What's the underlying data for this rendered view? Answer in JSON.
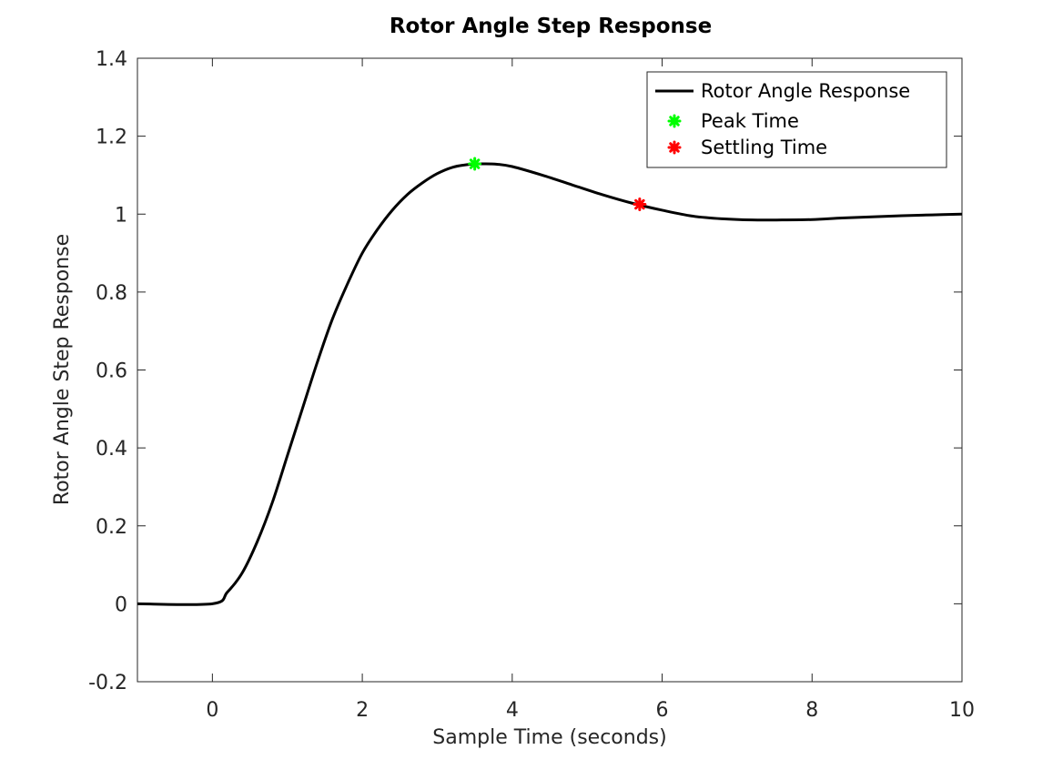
{
  "chart_data": {
    "type": "line",
    "title": "Rotor Angle Step Response",
    "xlabel": "Sample Time (seconds)",
    "ylabel": "Rotor Angle Step Response",
    "xlim": [
      -1,
      10
    ],
    "ylim": [
      -0.2,
      1.4
    ],
    "x_ticks": [
      0,
      2,
      4,
      6,
      8,
      10
    ],
    "y_ticks": [
      -0.2,
      0,
      0.2,
      0.4,
      0.6,
      0.8,
      1,
      1.2,
      1.4
    ],
    "y_tick_labels": [
      "-0.2",
      "0",
      "0.2",
      "0.4",
      "0.6",
      "0.8",
      "1",
      "1.2",
      "1.4"
    ],
    "grid": false,
    "legend_position": "top-right",
    "series": [
      {
        "name": "Rotor Angle Response",
        "color": "#000000",
        "style": "line",
        "x": [
          -1,
          0,
          0.2,
          0.4,
          0.6,
          0.8,
          1.0,
          1.2,
          1.4,
          1.6,
          1.8,
          2.0,
          2.2,
          2.4,
          2.6,
          2.8,
          3.0,
          3.2,
          3.4,
          3.6,
          3.8,
          4.0,
          4.4,
          4.8,
          5.2,
          5.6,
          6.0,
          6.4,
          6.8,
          7.2,
          7.6,
          8.0,
          8.4,
          8.8,
          9.2,
          9.6,
          10
        ],
        "y": [
          0,
          0,
          0.03,
          0.08,
          0.16,
          0.26,
          0.38,
          0.5,
          0.62,
          0.73,
          0.82,
          0.9,
          0.96,
          1.01,
          1.05,
          1.08,
          1.104,
          1.12,
          1.127,
          1.129,
          1.128,
          1.122,
          1.1,
          1.075,
          1.05,
          1.028,
          1.01,
          0.995,
          0.988,
          0.985,
          0.985,
          0.986,
          0.99,
          0.993,
          0.996,
          0.998,
          1.0
        ]
      },
      {
        "name": "Peak Time",
        "color": "#00ff00",
        "style": "marker",
        "x": [
          3.5
        ],
        "y": [
          1.129
        ]
      },
      {
        "name": "Settling Time",
        "color": "#ff0000",
        "style": "marker",
        "x": [
          5.7
        ],
        "y": [
          1.025
        ]
      }
    ]
  }
}
